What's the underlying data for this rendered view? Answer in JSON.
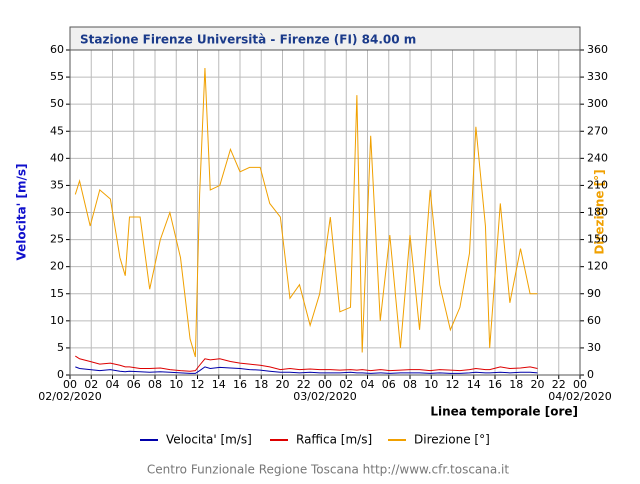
{
  "chart_data": {
    "type": "line",
    "title": "Stazione Firenze Università - Firenze (FI) 84.00 m",
    "y_label": "Velocita' [m/s]",
    "y2_label": "Direzione [°]",
    "x_label": "Linea temporale [ore]",
    "footer": "Centro Funzionale Regione Toscana http://www.cfr.toscana.it",
    "x": [
      0.5,
      0.9,
      1.9,
      2.8,
      3.8,
      4.7,
      5.2,
      5.6,
      6.6,
      7.5,
      8.5,
      9.4,
      10.4,
      11.3,
      11.8,
      12.2,
      12.7,
      13.2,
      14.1,
      15.1,
      16.0,
      16.9,
      17.9,
      18.8,
      19.8,
      20.7,
      21.6,
      22.6,
      23.5,
      24.5,
      25.4,
      26.4,
      27.0,
      27.5,
      28.3,
      29.2,
      30.1,
      31.1,
      32.0,
      32.9,
      33.9,
      34.8,
      35.8,
      36.7,
      37.6,
      38.2,
      39.1,
      39.5,
      40.5,
      41.4,
      42.4,
      43.3,
      44.0
    ],
    "series": [
      {
        "name": "Velocita' [m/s]",
        "color": "#0000aa",
        "values": [
          1.5,
          1.2,
          1.0,
          0.8,
          1.0,
          0.7,
          0.6,
          0.7,
          0.6,
          0.5,
          0.6,
          0.5,
          0.4,
          0.3,
          0.3,
          0.8,
          1.5,
          1.2,
          1.4,
          1.3,
          1.2,
          1.0,
          0.9,
          0.7,
          0.5,
          0.5,
          0.4,
          0.5,
          0.4,
          0.4,
          0.4,
          0.5,
          0.4,
          0.4,
          0.3,
          0.4,
          0.3,
          0.4,
          0.4,
          0.4,
          0.3,
          0.4,
          0.3,
          0.3,
          0.4,
          0.5,
          0.4,
          0.4,
          0.5,
          0.4,
          0.5,
          0.5,
          0.4
        ]
      },
      {
        "name": "Raffica [m/s]",
        "color": "#dd0000",
        "values": [
          3.5,
          3,
          2.5,
          2,
          2.2,
          1.8,
          1.5,
          1.5,
          1.2,
          1.2,
          1.3,
          1,
          0.8,
          0.7,
          0.8,
          1.8,
          3,
          2.8,
          3,
          2.5,
          2.2,
          2,
          1.8,
          1.5,
          1,
          1.2,
          1,
          1.1,
          1,
          1,
          0.9,
          1,
          0.9,
          1,
          0.8,
          1,
          0.8,
          0.9,
          1,
          1,
          0.8,
          1,
          0.9,
          0.8,
          1,
          1.2,
          1,
          1,
          1.5,
          1.2,
          1.3,
          1.5,
          1.2
        ]
      },
      {
        "name": "Direzione [°]",
        "color": "#f0a000",
        "axis": "y2",
        "values": [
          200,
          215,
          165,
          205,
          195,
          130,
          110,
          175,
          175,
          95,
          150,
          180,
          130,
          40,
          20,
          200,
          340,
          205,
          210,
          250,
          225,
          230,
          230,
          190,
          175,
          85,
          100,
          55,
          90,
          175,
          70,
          75,
          310,
          25,
          265,
          60,
          155,
          30,
          155,
          50,
          205,
          100,
          50,
          75,
          135,
          275,
          165,
          30,
          190,
          80,
          140,
          90,
          90
        ]
      }
    ],
    "xlim": [
      0,
      48
    ],
    "xticks": [
      {
        "value": 0,
        "label": "00"
      },
      {
        "value": 2,
        "label": "02"
      },
      {
        "value": 4,
        "label": "04"
      },
      {
        "value": 6,
        "label": "06"
      },
      {
        "value": 8,
        "label": "08"
      },
      {
        "value": 10,
        "label": "10"
      },
      {
        "value": 12,
        "label": "12"
      },
      {
        "value": 14,
        "label": "14"
      },
      {
        "value": 16,
        "label": "16"
      },
      {
        "value": 18,
        "label": "18"
      },
      {
        "value": 20,
        "label": "20"
      },
      {
        "value": 22,
        "label": "22"
      },
      {
        "value": 24,
        "label": "00"
      },
      {
        "value": 26,
        "label": "02"
      },
      {
        "value": 28,
        "label": "04"
      },
      {
        "value": 30,
        "label": "06"
      },
      {
        "value": 32,
        "label": "08"
      },
      {
        "value": 34,
        "label": "10"
      },
      {
        "value": 36,
        "label": "12"
      },
      {
        "value": 38,
        "label": "14"
      },
      {
        "value": 40,
        "label": "16"
      },
      {
        "value": 42,
        "label": "18"
      },
      {
        "value": 44,
        "label": "20"
      },
      {
        "value": 46,
        "label": "22"
      },
      {
        "value": 48,
        "label": "00"
      }
    ],
    "date_labels": [
      {
        "value": 0,
        "label": "02/02/2020"
      },
      {
        "value": 24,
        "label": "03/02/2020"
      },
      {
        "value": 48,
        "label": "04/02/2020"
      }
    ],
    "ylim": [
      0,
      60
    ],
    "yticks": [
      0,
      5,
      10,
      15,
      20,
      25,
      30,
      35,
      40,
      45,
      50,
      55,
      60
    ],
    "y2lim": [
      0,
      360
    ],
    "y2ticks": [
      0,
      30,
      60,
      90,
      120,
      150,
      180,
      210,
      240,
      270,
      300,
      330,
      360
    ],
    "grid": true
  }
}
